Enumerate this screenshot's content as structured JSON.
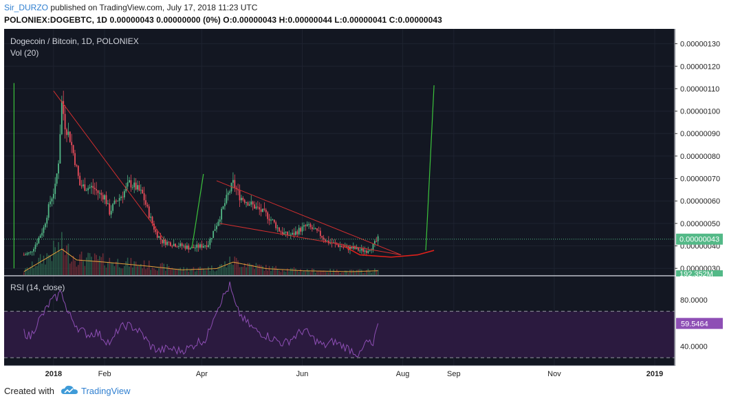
{
  "header": {
    "author": "Sir_DURZO",
    "published_text": " published on TradingView.com, July 17, 2018 11:23 UTC",
    "quote_line": "POLONIEX:DOGEBTC, 1D  0.00000043 0.00000000 (0%) O:0.00000043 H:0.00000044 L:0.00000041 C:0.00000043"
  },
  "footer": {
    "created_with": "Created with",
    "brand": "TradingView",
    "logo_icon": "tradingview-cloud-icon"
  },
  "chart_data": {
    "type": "candlestick",
    "title": "Dogecoin / Bitcoin, 1D, POLONIEX",
    "volume_label": "Vol (20)",
    "rsi_label": "RSI (14, close)",
    "price_axis": {
      "ticks": [
        "0.00000030",
        "0.00000040",
        "0.00000050",
        "0.00000060",
        "0.00000070",
        "0.00000080",
        "0.00000090",
        "0.00000100",
        "0.00000110",
        "0.00000120",
        "0.00000130"
      ],
      "range": [
        2.7e-07,
        1.36e-06
      ]
    },
    "rsi_axis": {
      "ticks": [
        "40.0000",
        "80.0000"
      ],
      "range": [
        23,
        100
      ],
      "band": [
        30,
        70
      ]
    },
    "x_axis": {
      "ticks": [
        "2018",
        "Feb",
        "Apr",
        "Jun",
        "Aug",
        "Sep",
        "Nov",
        "2019"
      ]
    },
    "current_price_label": "0.00000043",
    "current_price": 4.3e-07,
    "volume_label_value": "192.352M",
    "rsi_value_label": "59.5464",
    "rsi_value": 59.5464,
    "colors": {
      "up": "#53b987",
      "down": "#eb4d5c",
      "rsi": "#8e4fb5",
      "trendline": "#d32f2f",
      "annotation": "#3cc43c",
      "volume_ma": "#e6a23c",
      "background": "#131722"
    },
    "price_path": [
      [
        "2017-12-14",
        3.6e-07
      ],
      [
        "2017-12-18",
        3.7e-07
      ],
      [
        "2017-12-22",
        4.2e-07
      ],
      [
        "2017-12-26",
        4.8e-07
      ],
      [
        "2017-12-30",
        6e-07
      ],
      [
        "2018-01-02",
        6.6e-07
      ],
      [
        "2018-01-04",
        7.8e-07
      ],
      [
        "2018-01-06",
        1.04e-06
      ],
      [
        "2018-01-08",
        9.4e-07
      ],
      [
        "2018-01-11",
        8.8e-07
      ],
      [
        "2018-01-14",
        7.8e-07
      ],
      [
        "2018-01-17",
        6.7e-07
      ],
      [
        "2018-01-21",
        6.6e-07
      ],
      [
        "2018-01-25",
        6.6e-07
      ],
      [
        "2018-01-29",
        6.3e-07
      ],
      [
        "2018-02-01",
        6.2e-07
      ],
      [
        "2018-02-04",
        5.5e-07
      ],
      [
        "2018-02-08",
        6e-07
      ],
      [
        "2018-02-12",
        6.3e-07
      ],
      [
        "2018-02-16",
        6.8e-07
      ],
      [
        "2018-02-20",
        6.6e-07
      ],
      [
        "2018-02-24",
        6.3e-07
      ],
      [
        "2018-02-28",
        5.4e-07
      ],
      [
        "2018-03-04",
        4.6e-07
      ],
      [
        "2018-03-08",
        4.2e-07
      ],
      [
        "2018-03-14",
        4.1e-07
      ],
      [
        "2018-03-20",
        4e-07
      ],
      [
        "2018-03-26",
        3.9e-07
      ],
      [
        "2018-04-01",
        4e-07
      ],
      [
        "2018-04-05",
        4.1e-07
      ],
      [
        "2018-04-09",
        4.8e-07
      ],
      [
        "2018-04-13",
        5.5e-07
      ],
      [
        "2018-04-17",
        6.3e-07
      ],
      [
        "2018-04-20",
        6.8e-07
      ],
      [
        "2018-04-24",
        6.2e-07
      ],
      [
        "2018-04-28",
        6e-07
      ],
      [
        "2018-05-02",
        5.8e-07
      ],
      [
        "2018-05-06",
        5.6e-07
      ],
      [
        "2018-05-10",
        5.4e-07
      ],
      [
        "2018-05-14",
        5.1e-07
      ],
      [
        "2018-05-18",
        4.7e-07
      ],
      [
        "2018-05-22",
        4.5e-07
      ],
      [
        "2018-05-26",
        4.5e-07
      ],
      [
        "2018-05-30",
        4.7e-07
      ],
      [
        "2018-06-04",
        4.9e-07
      ],
      [
        "2018-06-08",
        4.7e-07
      ],
      [
        "2018-06-12",
        4.5e-07
      ],
      [
        "2018-06-16",
        4.2e-07
      ],
      [
        "2018-06-20",
        4.1e-07
      ],
      [
        "2018-06-24",
        4e-07
      ],
      [
        "2018-06-28",
        3.9e-07
      ],
      [
        "2018-07-02",
        3.9e-07
      ],
      [
        "2018-07-06",
        3.8e-07
      ],
      [
        "2018-07-10",
        3.8e-07
      ],
      [
        "2018-07-14",
        4e-07
      ],
      [
        "2018-07-17",
        4.3e-07
      ]
    ],
    "rsi_path": [
      [
        "2017-12-14",
        52
      ],
      [
        "2017-12-18",
        48
      ],
      [
        "2017-12-22",
        60
      ],
      [
        "2017-12-26",
        68
      ],
      [
        "2017-12-30",
        78
      ],
      [
        "2018-01-03",
        82
      ],
      [
        "2018-01-06",
        88
      ],
      [
        "2018-01-09",
        70
      ],
      [
        "2018-01-13",
        62
      ],
      [
        "2018-01-17",
        54
      ],
      [
        "2018-01-22",
        50
      ],
      [
        "2018-01-27",
        52
      ],
      [
        "2018-02-01",
        46
      ],
      [
        "2018-02-05",
        42
      ],
      [
        "2018-02-09",
        54
      ],
      [
        "2018-02-14",
        58
      ],
      [
        "2018-02-19",
        56
      ],
      [
        "2018-02-24",
        50
      ],
      [
        "2018-03-01",
        40
      ],
      [
        "2018-03-06",
        36
      ],
      [
        "2018-03-12",
        38
      ],
      [
        "2018-03-18",
        36
      ],
      [
        "2018-03-24",
        38
      ],
      [
        "2018-03-30",
        44
      ],
      [
        "2018-04-04",
        46
      ],
      [
        "2018-04-08",
        66
      ],
      [
        "2018-04-13",
        80
      ],
      [
        "2018-04-18",
        92
      ],
      [
        "2018-04-22",
        72
      ],
      [
        "2018-04-27",
        62
      ],
      [
        "2018-05-03",
        54
      ],
      [
        "2018-05-09",
        50
      ],
      [
        "2018-05-15",
        46
      ],
      [
        "2018-05-21",
        42
      ],
      [
        "2018-05-27",
        48
      ],
      [
        "2018-06-02",
        54
      ],
      [
        "2018-06-08",
        46
      ],
      [
        "2018-06-14",
        40
      ],
      [
        "2018-06-20",
        44
      ],
      [
        "2018-06-26",
        40
      ],
      [
        "2018-07-02",
        36
      ],
      [
        "2018-07-06",
        32
      ],
      [
        "2018-07-10",
        44
      ],
      [
        "2018-07-14",
        40
      ],
      [
        "2018-07-17",
        59.5464
      ]
    ],
    "volume_path": [
      [
        "2017-12-14",
        0.08
      ],
      [
        "2017-12-26",
        0.35
      ],
      [
        "2018-01-06",
        0.6
      ],
      [
        "2018-01-15",
        0.35
      ],
      [
        "2018-02-01",
        0.3
      ],
      [
        "2018-02-15",
        0.25
      ],
      [
        "2018-03-01",
        0.2
      ],
      [
        "2018-03-20",
        0.12
      ],
      [
        "2018-04-10",
        0.15
      ],
      [
        "2018-04-20",
        0.3
      ],
      [
        "2018-05-10",
        0.15
      ],
      [
        "2018-06-01",
        0.1
      ],
      [
        "2018-07-01",
        0.08
      ],
      [
        "2018-07-17",
        0.1
      ]
    ],
    "trendlines": [
      {
        "name": "downtrend-1",
        "points": [
          [
            "2018-01-01",
            1.09e-06
          ],
          [
            "2018-03-10",
            4.2e-07
          ]
        ]
      },
      {
        "name": "wedge-upper",
        "points": [
          [
            "2018-04-10",
            6.9e-07
          ],
          [
            "2018-07-31",
            3.6e-07
          ]
        ]
      },
      {
        "name": "wedge-lower",
        "points": [
          [
            "2018-04-12",
            5e-07
          ],
          [
            "2018-07-31",
            3.6e-07
          ]
        ]
      }
    ],
    "cup_curve": [
      [
        "2018-06-26",
        4e-07
      ],
      [
        "2018-07-06",
        3.6e-07
      ],
      [
        "2018-07-25",
        3.5e-07
      ],
      [
        "2018-08-10",
        3.6e-07
      ],
      [
        "2018-08-20",
        3.8e-07
      ]
    ],
    "annotations_green": [
      {
        "name": "spike-1",
        "points": [
          [
            "2017-12-08",
            3e-07
          ],
          [
            "2017-12-08",
            1.125e-06
          ]
        ]
      },
      {
        "name": "spike-2",
        "points": [
          [
            "2018-03-26",
            3.9e-07
          ],
          [
            "2018-04-02",
            7.2e-07
          ]
        ]
      },
      {
        "name": "projection",
        "points": [
          [
            "2018-08-15",
            3.8e-07
          ],
          [
            "2018-08-20",
            1.115e-06
          ]
        ]
      }
    ]
  }
}
